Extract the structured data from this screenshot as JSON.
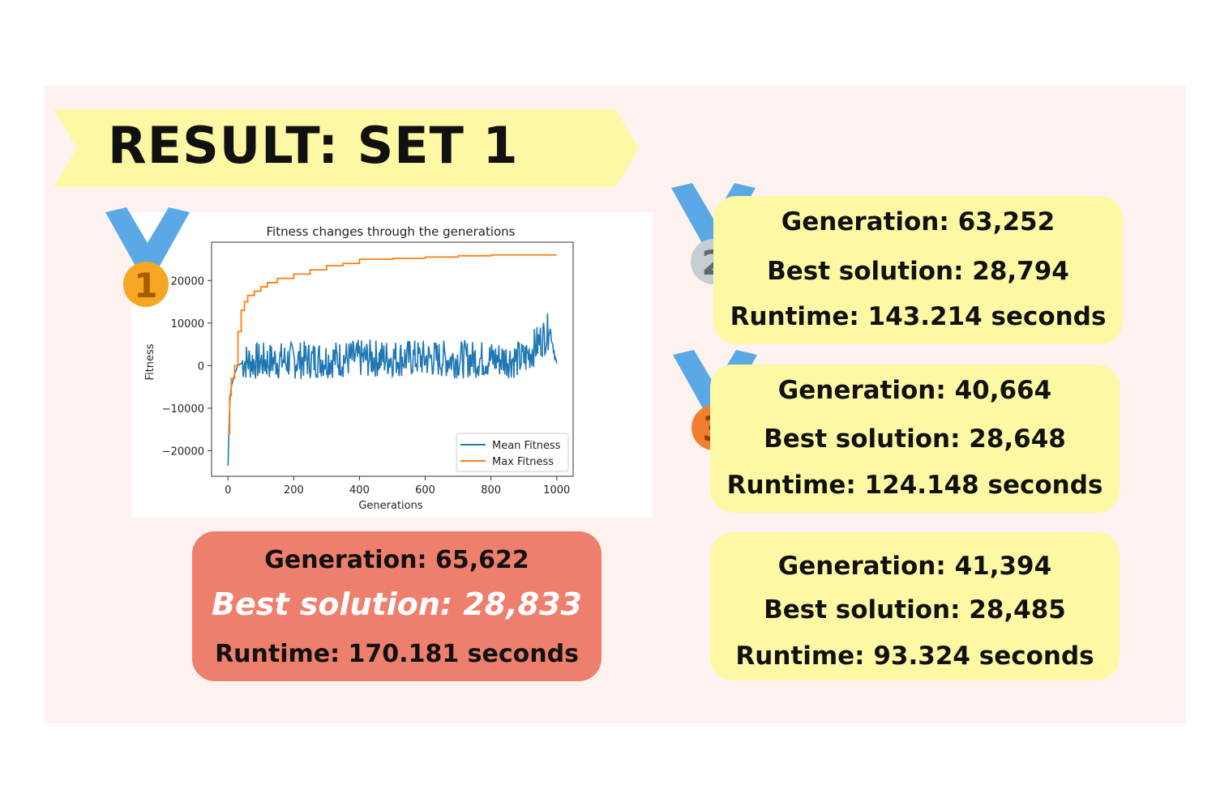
{
  "title": "RESULT: SET 1",
  "chart_data": {
    "type": "line",
    "title": "Fitness changes through the generations",
    "xlabel": "Generations",
    "ylabel": "Fitness",
    "xlim": [
      -50,
      1050
    ],
    "ylim": [
      -26000,
      29000
    ],
    "xticks": [
      0,
      200,
      400,
      600,
      800,
      1000
    ],
    "yticks": [
      -20000,
      -10000,
      0,
      10000,
      20000
    ],
    "xtick_labels": [
      "0",
      "200",
      "400",
      "600",
      "800",
      "1000"
    ],
    "ytick_labels": [
      "−20000",
      "−10000",
      "0",
      "10000",
      "20000"
    ],
    "legend_position": "lower-right",
    "series": [
      {
        "name": "Mean Fitness",
        "color": "#1f77b4",
        "summary": {
          "x": [
            0,
            5,
            10,
            20,
            30,
            50,
            100,
            300,
            500,
            700,
            900,
            980,
            1000
          ],
          "y": [
            -23500,
            -9000,
            -5000,
            -2000,
            0,
            1000,
            1000,
            1500,
            1800,
            1500,
            1500,
            8500,
            0
          ],
          "noise_amplitude": 4500
        }
      },
      {
        "name": "Max Fitness",
        "color": "#ff7f0e",
        "x": [
          0,
          5,
          10,
          20,
          30,
          40,
          50,
          60,
          80,
          100,
          120,
          150,
          200,
          250,
          300,
          350,
          400,
          500,
          600,
          700,
          800,
          900,
          1000
        ],
        "y": [
          -16000,
          -7000,
          -3000,
          0,
          8000,
          13000,
          15000,
          16500,
          17500,
          18500,
          19500,
          20500,
          21500,
          22500,
          23500,
          24000,
          25000,
          25200,
          25500,
          25800,
          26000,
          26000,
          26000
        ]
      }
    ]
  },
  "medals": [
    {
      "rank": "1",
      "color": "#f5a623"
    },
    {
      "rank": "2",
      "color": "#c7cdd1"
    },
    {
      "rank": "3",
      "color": "#f07f2f"
    }
  ],
  "results": {
    "first": {
      "generation": "Generation: 65,622",
      "best": "Best solution: 28,833",
      "runtime": "Runtime: 170.181 seconds"
    },
    "second": {
      "generation": "Generation: 63,252",
      "best": "Best solution: 28,794",
      "runtime": "Runtime: 143.214 seconds"
    },
    "third": {
      "generation": "Generation: 40,664",
      "best": "Best solution: 28,648",
      "runtime": "Runtime: 124.148 seconds"
    },
    "fourth": {
      "generation": "Generation: 41,394",
      "best": "Best solution: 28,485",
      "runtime": "Runtime: 93.324 seconds"
    }
  }
}
